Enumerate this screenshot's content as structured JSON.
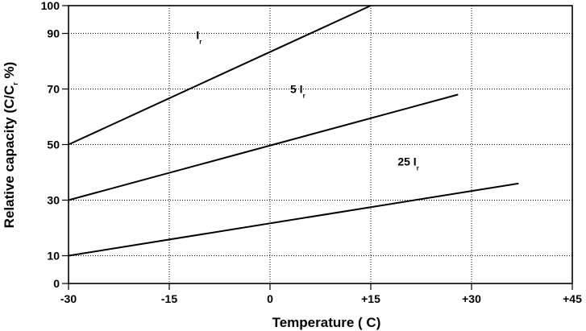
{
  "chart_data": {
    "type": "line",
    "xlabel": "Temperature  ( C)",
    "ylabel": "Relative capacity (C/C %)",
    "ylabel_sub": "r",
    "xlim": [
      -30,
      45
    ],
    "ylim": [
      0,
      100
    ],
    "x_ticks": [
      -30,
      -15,
      0,
      15,
      30,
      45
    ],
    "x_tick_labels": [
      "-30",
      "-15",
      "0",
      "+15",
      "+30",
      "+45"
    ],
    "y_ticks": [
      0,
      10,
      30,
      50,
      70,
      90,
      100
    ],
    "y_tick_labels": [
      "0",
      "10",
      "30",
      "50",
      "70",
      "90",
      "100"
    ],
    "grid": true,
    "series": [
      {
        "name": "I",
        "name_sub": "r",
        "x": [
          -30,
          15
        ],
        "y": [
          50,
          100
        ],
        "label_at": [
          -11,
          88
        ]
      },
      {
        "name": "5 I",
        "name_sub": "r",
        "x": [
          -30,
          28
        ],
        "y": [
          30,
          68
        ],
        "label_at": [
          3,
          68.5
        ]
      },
      {
        "name": "25 I",
        "name_sub": "r",
        "x": [
          -30,
          37
        ],
        "y": [
          10,
          36
        ],
        "label_at": [
          19,
          42.5
        ]
      }
    ]
  }
}
